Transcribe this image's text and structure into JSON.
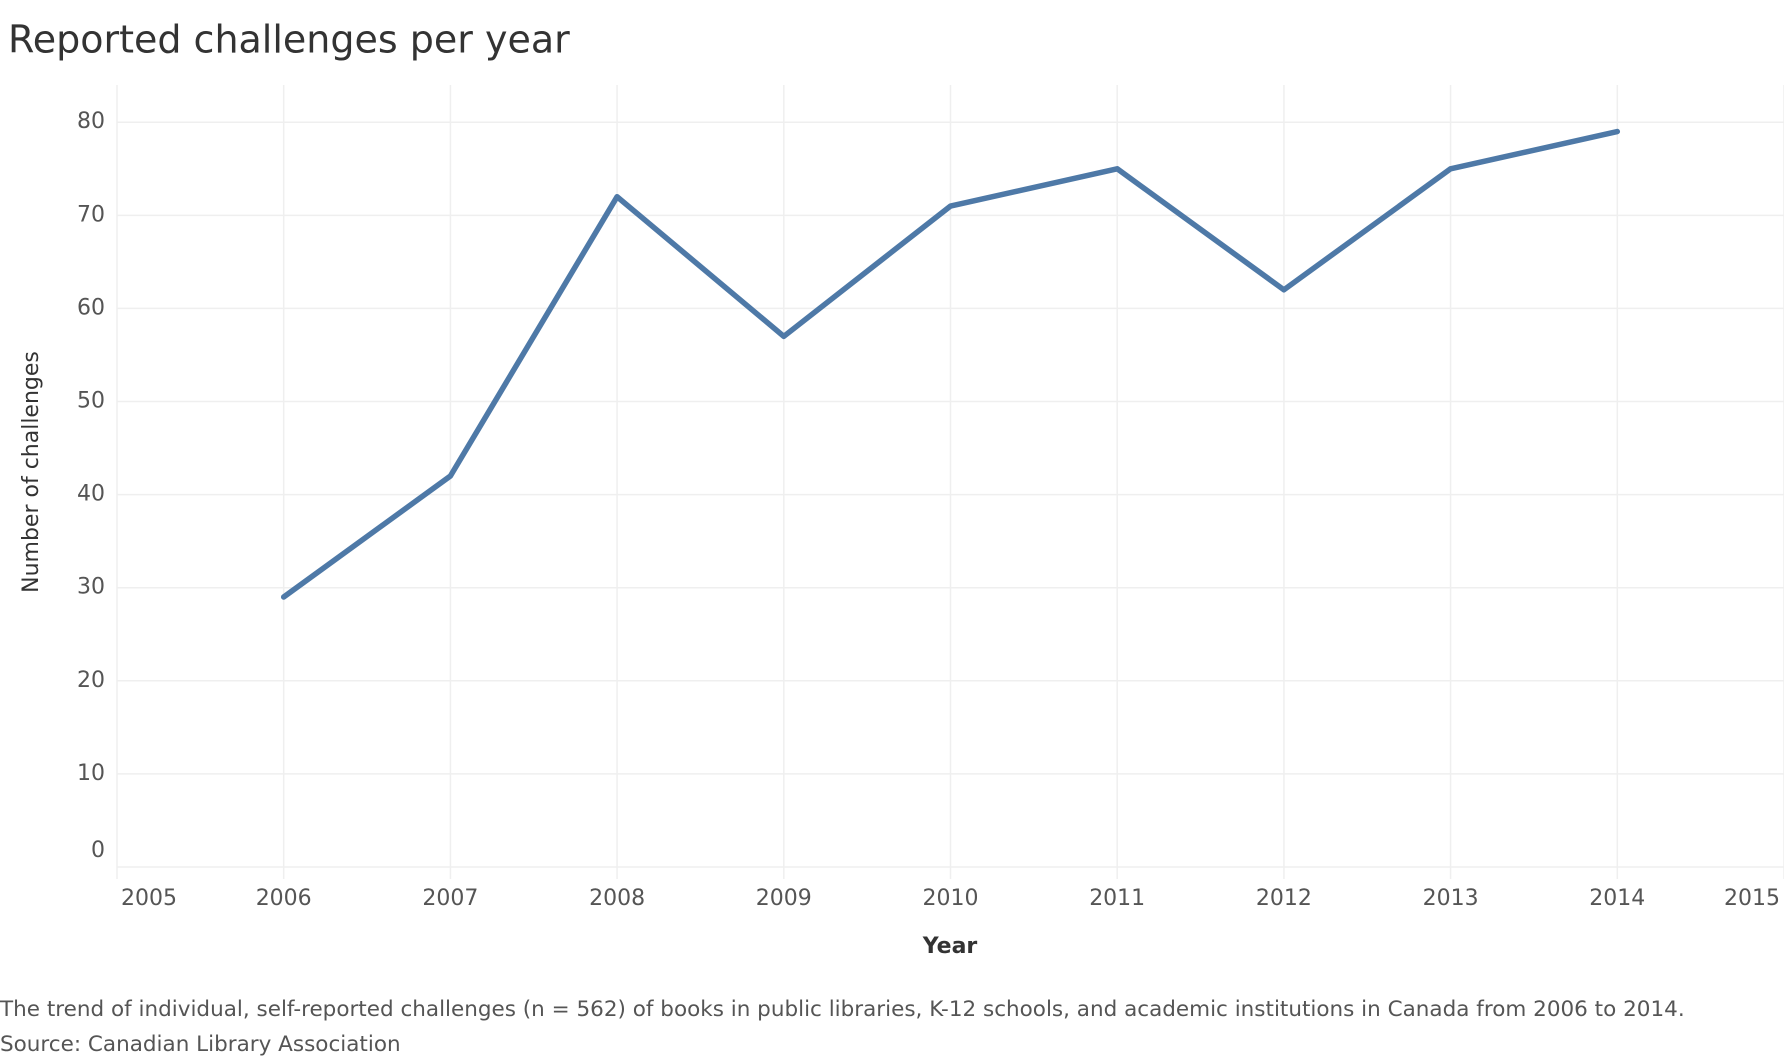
{
  "chart_data": {
    "type": "line",
    "title": "Reported challenges per year",
    "x": [
      2006,
      2007,
      2008,
      2009,
      2010,
      2011,
      2012,
      2013,
      2014
    ],
    "series": [
      {
        "name": "Number of challenges",
        "color": "#4e79a7",
        "values": [
          29,
          42,
          72,
          57,
          71,
          75,
          62,
          75,
          79
        ]
      }
    ],
    "xlabel": "Year",
    "ylabel": "Number of challenges",
    "xlim": [
      2005,
      2015
    ],
    "xticks": [
      2005,
      2006,
      2007,
      2008,
      2009,
      2010,
      2011,
      2012,
      2013,
      2014,
      2015
    ],
    "ylim": [
      0,
      84
    ],
    "yticks": [
      0,
      10,
      20,
      30,
      40,
      50,
      60,
      70,
      80
    ],
    "grid": true,
    "caption": "The trend of individual, self-reported challenges (n = 562) of books in public libraries, K-12 schools, and academic institutions in Canada from 2006 to 2014.",
    "source": "Source: Canadian Library Association"
  }
}
